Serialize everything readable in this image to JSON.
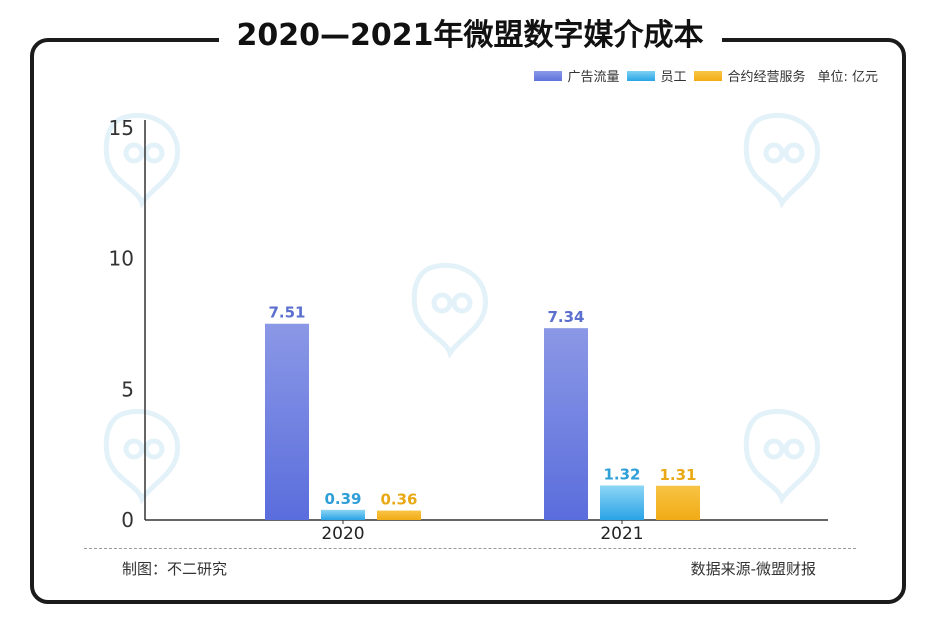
{
  "title": "2020—2021年微盟数字媒介成本",
  "unit_label": "单位: 亿元",
  "footer": {
    "left": "制图：不二研究",
    "right": "数据来源-微盟财报"
  },
  "watermark": {
    "text": "不二研究",
    "icon": "logo-bubble-icon"
  },
  "colors": {
    "ad": "#6b7fe0",
    "staff": "#3fb6ea",
    "service": "#f5b729",
    "ad_label": "#5b6fcf",
    "staff_label": "#2f9fd8",
    "service_label": "#e8a915"
  },
  "chart_data": {
    "type": "bar",
    "categories": [
      "2020",
      "2021"
    ],
    "series": [
      {
        "name": "广告流量",
        "values": [
          7.51,
          7.34
        ]
      },
      {
        "name": "员工",
        "values": [
          0.39,
          1.32
        ]
      },
      {
        "name": "合约经营服务",
        "values": [
          0.36,
          1.31
        ]
      }
    ],
    "data_labels": [
      [
        "7.51",
        "7.34"
      ],
      [
        "0.39",
        "1.32"
      ],
      [
        "0.36",
        "1.31"
      ]
    ],
    "yticks": [
      0,
      5,
      10,
      15
    ],
    "ylim": [
      0,
      15
    ],
    "title": "2020—2021年微盟数字媒介成本",
    "xlabel": "",
    "ylabel": "",
    "legend": "top-right",
    "grid": false
  }
}
